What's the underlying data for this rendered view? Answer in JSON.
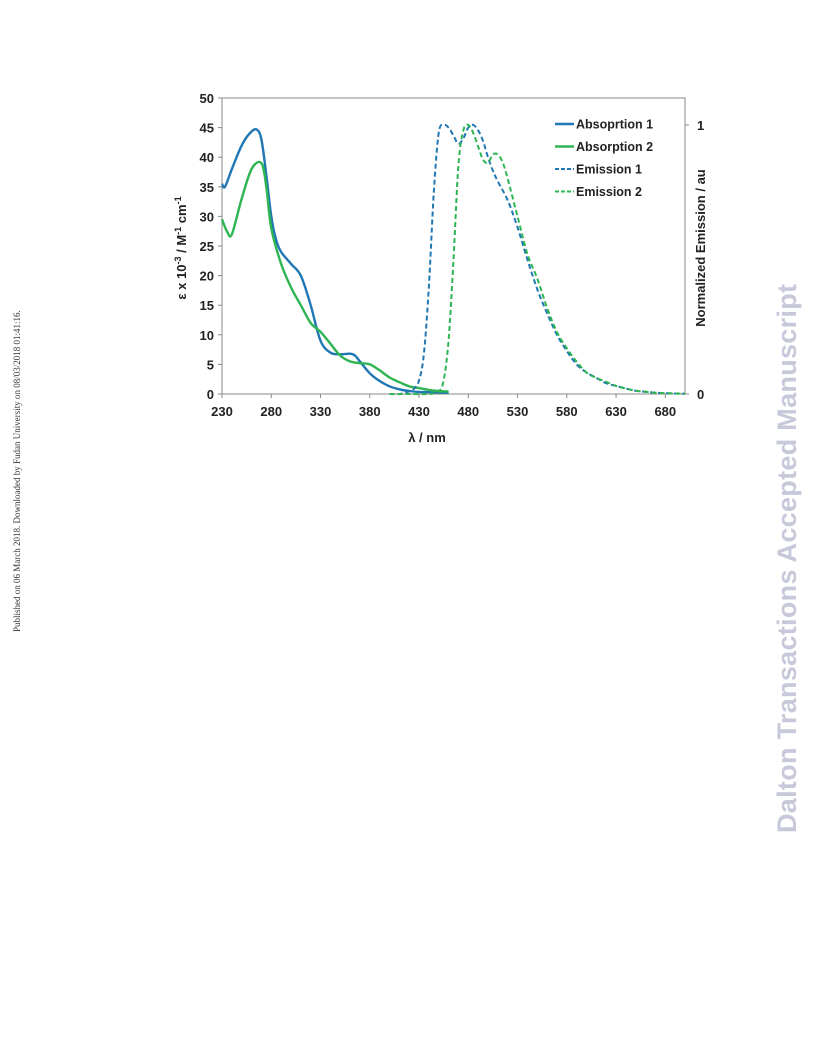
{
  "side_note": "Published on 06 March 2018. Downloaded by Fudan University on 08/03/2018 01:41:16.",
  "watermark": "Dalton Transactions Accepted Manuscript",
  "chart_data": {
    "type": "line",
    "xlabel": "λ / nm",
    "ylabel_left": "ε x 10-3 / M-1 cm-1",
    "ylabel_right": "Normalized Emission  / au",
    "xlim": [
      230,
      700
    ],
    "ylim_left": [
      0,
      50
    ],
    "ylim_right": [
      0,
      1.1
    ],
    "x_ticks": [
      230,
      280,
      330,
      380,
      430,
      480,
      530,
      580,
      630,
      680
    ],
    "y_ticks_left": [
      0,
      5,
      10,
      15,
      20,
      25,
      30,
      35,
      40,
      45,
      50
    ],
    "y_ticks_right": [
      0,
      1
    ],
    "legend_position": "top-right",
    "colors": {
      "blue": "#1f77b4",
      "green": "#2db552"
    },
    "series": [
      {
        "name": "Absoprtion 1",
        "axis": "left",
        "style": "solid",
        "color": "#1f77b4",
        "x": [
          230,
          233,
          240,
          250,
          258,
          265,
          270,
          275,
          280,
          285,
          290,
          300,
          310,
          320,
          330,
          340,
          350,
          360,
          365,
          370,
          380,
          390,
          400,
          410,
          420,
          430,
          440,
          450,
          460
        ],
        "y": [
          35.5,
          35,
          38,
          42,
          44,
          44.7,
          43,
          37,
          30,
          26,
          24,
          22,
          20,
          15,
          9,
          7,
          6.7,
          6.8,
          6.5,
          5.5,
          3.5,
          2.2,
          1.3,
          0.8,
          0.5,
          0.35,
          0.3,
          0.25,
          0.2
        ]
      },
      {
        "name": "Absorption 2",
        "axis": "left",
        "style": "solid",
        "color": "#2db552",
        "x": [
          230,
          235,
          240,
          250,
          260,
          270,
          275,
          280,
          290,
          300,
          310,
          320,
          330,
          340,
          350,
          360,
          370,
          380,
          390,
          400,
          410,
          420,
          430,
          440,
          450,
          460
        ],
        "y": [
          29.5,
          27.5,
          27,
          33,
          38,
          39,
          35,
          28,
          22,
          18,
          15,
          12,
          10.5,
          8.5,
          6.5,
          5.5,
          5.2,
          5,
          4,
          2.8,
          2,
          1.3,
          1,
          0.7,
          0.5,
          0.4
        ]
      },
      {
        "name": "Emission 1",
        "axis": "right",
        "style": "dashed",
        "color": "#1f77b4",
        "x": [
          400,
          410,
          420,
          425,
          430,
          435,
          440,
          445,
          450,
          455,
          460,
          465,
          470,
          475,
          480,
          485,
          490,
          495,
          500,
          505,
          510,
          520,
          530,
          540,
          550,
          560,
          570,
          580,
          590,
          600,
          610,
          620,
          630,
          640,
          650,
          660,
          670,
          680,
          690,
          700
        ],
        "y": [
          0.0,
          0.0,
          0.01,
          0.02,
          0.05,
          0.15,
          0.4,
          0.75,
          0.97,
          1.0,
          0.99,
          0.96,
          0.93,
          0.95,
          0.99,
          1.0,
          0.98,
          0.94,
          0.88,
          0.83,
          0.79,
          0.72,
          0.62,
          0.5,
          0.39,
          0.3,
          0.22,
          0.16,
          0.11,
          0.08,
          0.06,
          0.04,
          0.03,
          0.02,
          0.012,
          0.008,
          0.005,
          0.003,
          0.002,
          0.001
        ]
      },
      {
        "name": "Emission 2",
        "axis": "right",
        "style": "dashed",
        "color": "#2db552",
        "x": [
          400,
          420,
          440,
          450,
          455,
          460,
          465,
          470,
          475,
          480,
          485,
          490,
          495,
          500,
          505,
          510,
          515,
          520,
          530,
          540,
          550,
          560,
          570,
          580,
          590,
          600,
          610,
          620,
          630,
          640,
          650,
          660,
          670,
          680,
          690,
          700
        ],
        "y": [
          0.0,
          0.0,
          0.0,
          0.01,
          0.05,
          0.2,
          0.5,
          0.85,
          0.98,
          1.0,
          0.97,
          0.92,
          0.87,
          0.86,
          0.89,
          0.89,
          0.86,
          0.8,
          0.66,
          0.52,
          0.43,
          0.32,
          0.23,
          0.17,
          0.12,
          0.08,
          0.06,
          0.045,
          0.03,
          0.02,
          0.012,
          0.008,
          0.005,
          0.003,
          0.002,
          0.001
        ]
      }
    ]
  }
}
